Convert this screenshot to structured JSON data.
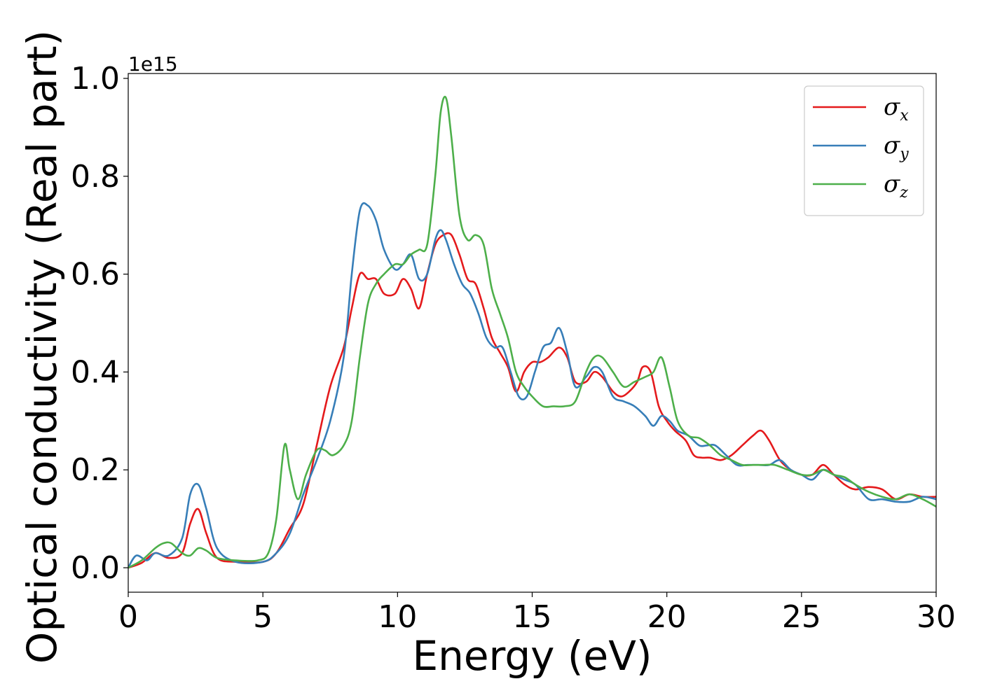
{
  "chart_data": {
    "type": "line",
    "xlabel": "Energy (eV)",
    "ylabel": "Optical conductivity (Real part)",
    "y_offset_label": "1e15",
    "xlim": [
      0,
      30
    ],
    "ylim": [
      -0.05,
      1.01
    ],
    "x_ticks": [
      0,
      5,
      10,
      15,
      20,
      25,
      30
    ],
    "x_tick_labels": [
      "0",
      "5",
      "10",
      "15",
      "20",
      "25",
      "30"
    ],
    "y_ticks": [
      0.0,
      0.2,
      0.4,
      0.6,
      0.8,
      1.0
    ],
    "y_tick_labels": [
      "0.0",
      "0.2",
      "0.4",
      "0.6",
      "0.8",
      "1.0"
    ],
    "grid": false,
    "legend_position": "top-right",
    "series": [
      {
        "name": "σ",
        "subscript": "x",
        "color": "#e41a1c",
        "x": [
          0,
          0.5,
          1.0,
          1.5,
          2.0,
          2.3,
          2.6,
          2.9,
          3.3,
          4.0,
          5.0,
          5.5,
          6.0,
          6.5,
          7.0,
          7.5,
          8.0,
          8.3,
          8.6,
          8.9,
          9.2,
          9.5,
          9.9,
          10.2,
          10.5,
          10.8,
          11.1,
          11.4,
          11.7,
          12.0,
          12.3,
          12.6,
          12.9,
          13.2,
          13.5,
          13.8,
          14.1,
          14.4,
          14.7,
          15.0,
          15.3,
          15.6,
          16.0,
          16.3,
          16.6,
          17.0,
          17.3,
          17.6,
          18.0,
          18.3,
          18.6,
          18.9,
          19.1,
          19.4,
          19.7,
          20.0,
          20.3,
          20.7,
          21.0,
          21.3,
          21.6,
          22.0,
          22.4,
          22.8,
          23.2,
          23.5,
          23.8,
          24.2,
          24.6,
          25.0,
          25.4,
          25.8,
          26.2,
          26.6,
          27.0,
          27.5,
          28.0,
          28.5,
          29.0,
          29.5,
          30.0
        ],
        "y": [
          0.0,
          0.01,
          0.03,
          0.02,
          0.03,
          0.09,
          0.12,
          0.07,
          0.02,
          0.012,
          0.012,
          0.03,
          0.08,
          0.13,
          0.25,
          0.37,
          0.45,
          0.53,
          0.6,
          0.59,
          0.59,
          0.56,
          0.56,
          0.59,
          0.57,
          0.53,
          0.6,
          0.66,
          0.68,
          0.68,
          0.64,
          0.59,
          0.58,
          0.53,
          0.47,
          0.44,
          0.41,
          0.36,
          0.4,
          0.42,
          0.42,
          0.43,
          0.45,
          0.43,
          0.38,
          0.38,
          0.4,
          0.39,
          0.36,
          0.35,
          0.36,
          0.38,
          0.41,
          0.4,
          0.33,
          0.3,
          0.28,
          0.26,
          0.23,
          0.225,
          0.225,
          0.22,
          0.23,
          0.25,
          0.27,
          0.28,
          0.26,
          0.22,
          0.2,
          0.19,
          0.19,
          0.21,
          0.19,
          0.17,
          0.16,
          0.165,
          0.16,
          0.14,
          0.15,
          0.145,
          0.145
        ]
      },
      {
        "name": "σ",
        "subscript": "y",
        "color": "#377eb8",
        "x": [
          0,
          0.3,
          0.7,
          1.0,
          1.5,
          2.0,
          2.3,
          2.6,
          2.9,
          3.3,
          4.0,
          5.0,
          5.5,
          6.0,
          6.5,
          7.0,
          7.5,
          8.0,
          8.3,
          8.6,
          8.9,
          9.2,
          9.5,
          9.9,
          10.2,
          10.5,
          10.8,
          11.1,
          11.4,
          11.6,
          11.8,
          12.1,
          12.4,
          12.7,
          13.0,
          13.3,
          13.6,
          13.9,
          14.2,
          14.5,
          14.8,
          15.1,
          15.4,
          15.7,
          16.0,
          16.3,
          16.6,
          17.0,
          17.3,
          17.6,
          18.0,
          18.4,
          18.8,
          19.2,
          19.5,
          19.8,
          20.1,
          20.4,
          20.8,
          21.2,
          21.5,
          21.8,
          22.2,
          22.6,
          23.0,
          23.4,
          23.8,
          24.2,
          24.6,
          25.0,
          25.4,
          25.8,
          26.2,
          26.6,
          27.0,
          27.5,
          28.0,
          28.5,
          29.0,
          29.5,
          30.0
        ],
        "y": [
          0.0,
          0.025,
          0.015,
          0.03,
          0.025,
          0.06,
          0.15,
          0.17,
          0.12,
          0.04,
          0.012,
          0.012,
          0.03,
          0.07,
          0.15,
          0.22,
          0.3,
          0.43,
          0.6,
          0.73,
          0.74,
          0.71,
          0.65,
          0.61,
          0.62,
          0.64,
          0.59,
          0.6,
          0.67,
          0.69,
          0.67,
          0.62,
          0.58,
          0.56,
          0.52,
          0.47,
          0.45,
          0.45,
          0.4,
          0.35,
          0.35,
          0.4,
          0.45,
          0.46,
          0.49,
          0.44,
          0.37,
          0.39,
          0.41,
          0.4,
          0.35,
          0.34,
          0.33,
          0.31,
          0.29,
          0.31,
          0.3,
          0.28,
          0.27,
          0.25,
          0.25,
          0.25,
          0.23,
          0.21,
          0.21,
          0.21,
          0.21,
          0.22,
          0.2,
          0.19,
          0.18,
          0.2,
          0.19,
          0.18,
          0.17,
          0.14,
          0.14,
          0.135,
          0.135,
          0.145,
          0.14
        ]
      },
      {
        "name": "σ",
        "subscript": "z",
        "color": "#4daf4a",
        "x": [
          0,
          0.5,
          1.0,
          1.3,
          1.6,
          2.0,
          2.3,
          2.6,
          2.9,
          3.3,
          4.0,
          4.8,
          5.2,
          5.5,
          5.8,
          6.0,
          6.3,
          6.6,
          7.0,
          7.3,
          7.6,
          8.0,
          8.3,
          8.6,
          8.9,
          9.2,
          9.5,
          9.9,
          10.2,
          10.5,
          10.8,
          11.1,
          11.4,
          11.6,
          11.8,
          12.0,
          12.3,
          12.6,
          12.9,
          13.2,
          13.5,
          13.8,
          14.1,
          14.4,
          14.7,
          15.0,
          15.4,
          15.8,
          16.2,
          16.6,
          17.0,
          17.3,
          17.6,
          18.0,
          18.4,
          18.8,
          19.2,
          19.5,
          19.8,
          20.1,
          20.4,
          20.8,
          21.2,
          21.6,
          22.0,
          22.4,
          22.8,
          23.2,
          23.6,
          24.0,
          24.5,
          25.0,
          25.4,
          25.8,
          26.2,
          26.6,
          27.0,
          27.5,
          28.0,
          28.5,
          29.0,
          29.5,
          30.0
        ],
        "y": [
          0.0,
          0.015,
          0.04,
          0.05,
          0.05,
          0.03,
          0.025,
          0.04,
          0.035,
          0.02,
          0.015,
          0.015,
          0.03,
          0.1,
          0.25,
          0.2,
          0.14,
          0.19,
          0.24,
          0.24,
          0.23,
          0.25,
          0.3,
          0.43,
          0.54,
          0.58,
          0.6,
          0.62,
          0.62,
          0.64,
          0.65,
          0.66,
          0.8,
          0.93,
          0.96,
          0.88,
          0.72,
          0.67,
          0.68,
          0.66,
          0.57,
          0.52,
          0.47,
          0.4,
          0.37,
          0.35,
          0.33,
          0.33,
          0.33,
          0.34,
          0.4,
          0.43,
          0.43,
          0.4,
          0.37,
          0.38,
          0.39,
          0.4,
          0.43,
          0.37,
          0.3,
          0.27,
          0.265,
          0.25,
          0.23,
          0.22,
          0.21,
          0.21,
          0.21,
          0.21,
          0.2,
          0.19,
          0.19,
          0.2,
          0.19,
          0.185,
          0.17,
          0.155,
          0.145,
          0.14,
          0.15,
          0.14,
          0.125
        ]
      }
    ]
  }
}
